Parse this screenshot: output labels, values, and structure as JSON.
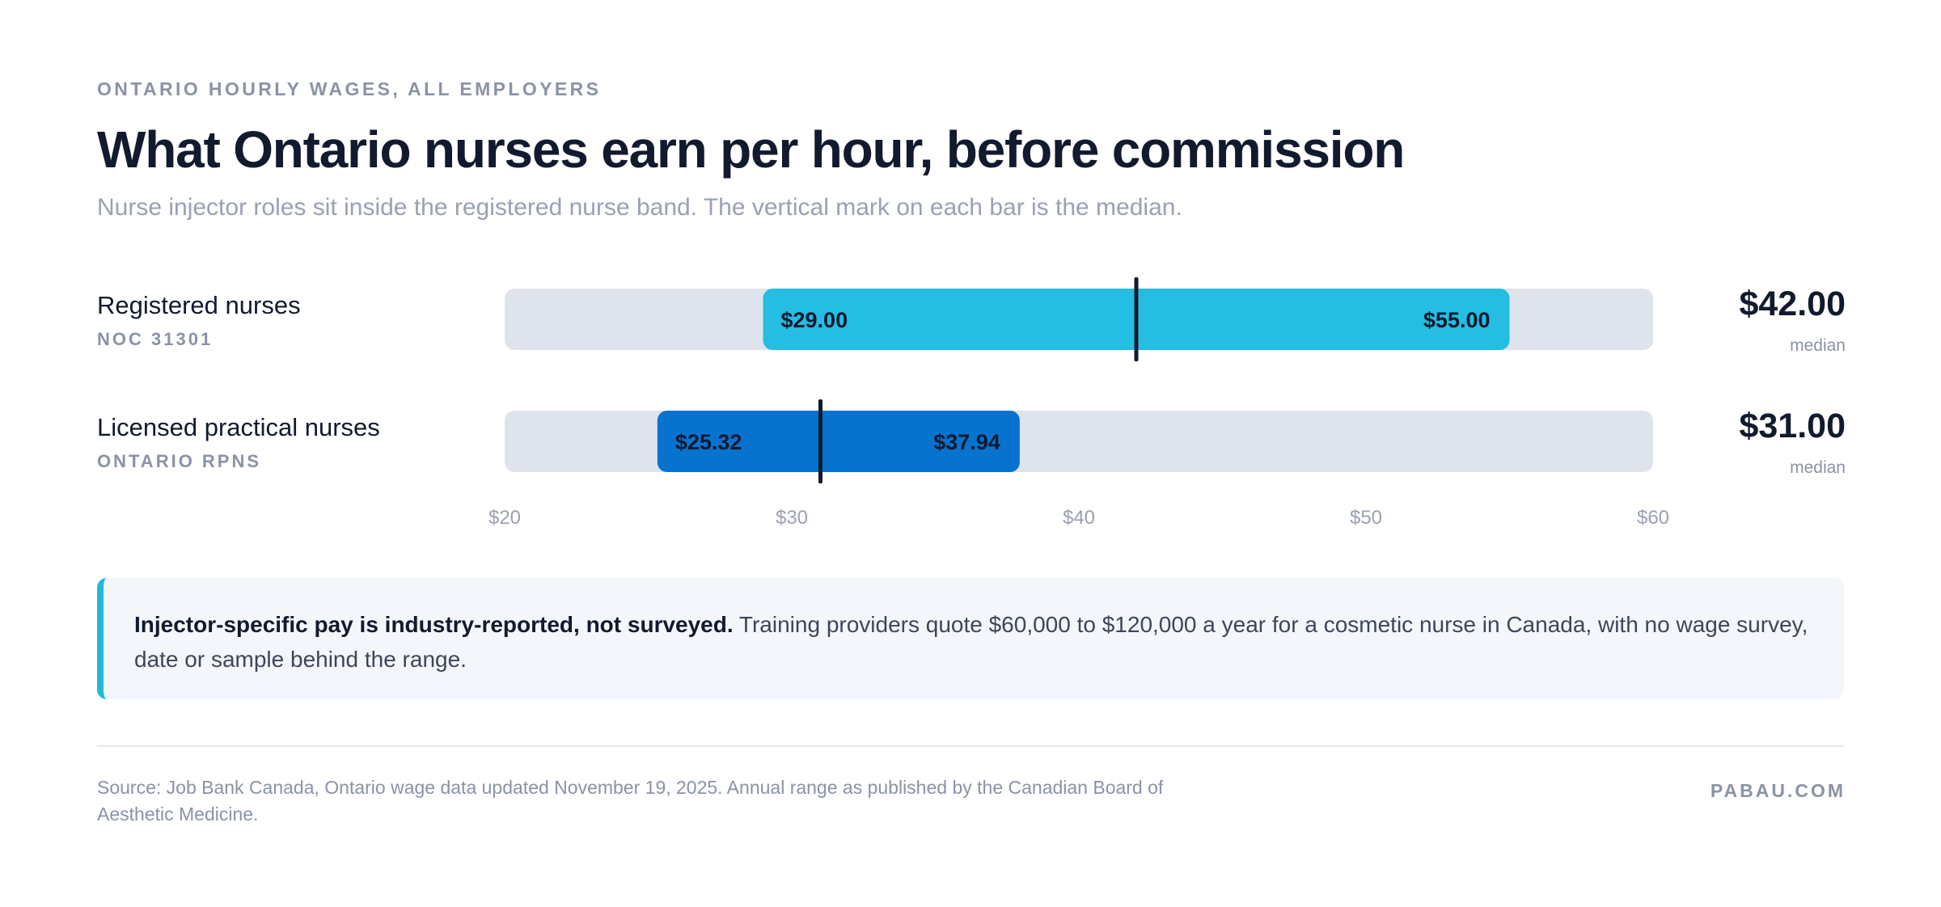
{
  "header": {
    "eyebrow": "ONTARIO HOURLY WAGES, ALL EMPLOYERS",
    "title": "What Ontario nurses earn per hour, before commission",
    "subtitle": "Nurse injector roles sit inside the registered nurse band. The vertical mark on each bar is the median."
  },
  "rows": [
    {
      "label": "Registered nurses",
      "sublabel": "NOC 31301",
      "low_label": "$29.00",
      "high_label": "$55.00",
      "median_label": "$42.00",
      "median_caption": "median"
    },
    {
      "label": "Licensed practical nurses",
      "sublabel": "ONTARIO RPNS",
      "low_label": "$25.32",
      "high_label": "$37.94",
      "median_label": "$31.00",
      "median_caption": "median"
    }
  ],
  "chart_data": {
    "type": "bar",
    "subtype": "range",
    "categories": [
      "Registered nurses",
      "Licensed practical nurses"
    ],
    "low": [
      29.0,
      25.32
    ],
    "high": [
      55.0,
      37.94
    ],
    "median": [
      42.0,
      31.0
    ],
    "xlim": [
      20,
      60
    ],
    "x_ticks": [
      20,
      30,
      40,
      50,
      60
    ],
    "x_tick_labels": [
      "$20",
      "$30",
      "$40",
      "$50",
      "$60"
    ],
    "colors": [
      "#25bde2",
      "#0873cf"
    ],
    "track_color": "#dfe3ec",
    "median_mark_color": "#111a2e",
    "grid": false
  },
  "callout": {
    "bold": "Injector-specific pay is industry-reported, not surveyed.",
    "text": " Training providers quote $60,000 to $120,000 a year for a cosmetic nurse in Canada, with no wage survey, date or sample behind the range.",
    "accent_color": "#22b8dd"
  },
  "footer": {
    "source": "Source: Job Bank Canada, Ontario wage data updated November 19, 2025. Annual range as published by the Canadian Board of Aesthetic Medicine.",
    "brand": "PABAU.COM"
  }
}
